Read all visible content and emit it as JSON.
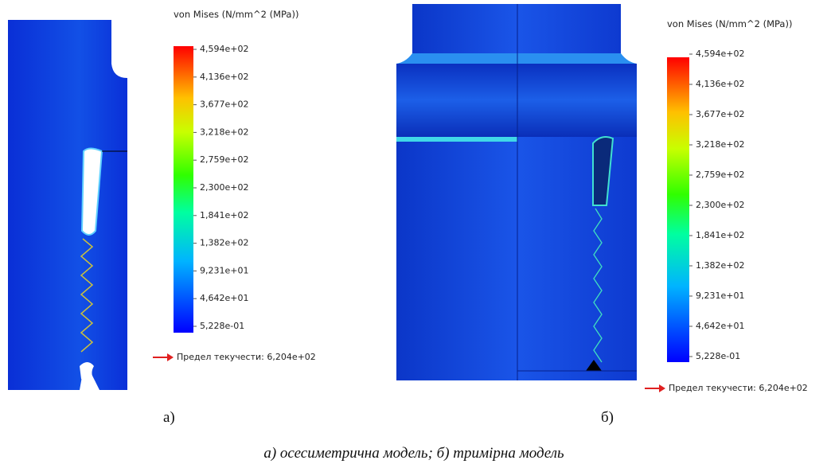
{
  "panels": [
    {
      "label": "а)",
      "legend_title": "von Mises (N/mm^2 (MPa))",
      "ticks": [
        "4,594e+02",
        "4,136e+02",
        "3,677e+02",
        "3,218e+02",
        "2,759e+02",
        "2,300e+02",
        "1,841e+02",
        "1,382e+02",
        "9,231e+01",
        "4,642e+01",
        "5,228e-01"
      ],
      "yield_label": "Предел текучести: 6,204e+02"
    },
    {
      "label": "б)",
      "legend_title": "von Mises (N/mm^2 (MPa))",
      "ticks": [
        "4,594e+02",
        "4,136e+02",
        "3,677e+02",
        "3,218e+02",
        "2,759e+02",
        "2,300e+02",
        "1,841e+02",
        "1,382e+02",
        "9,231e+01",
        "4,642e+01",
        "5,228e-01"
      ],
      "yield_label": "Предел текучести: 6,204e+02"
    }
  ],
  "caption": "а) осесиметрична модель; б) тримірна модель"
}
